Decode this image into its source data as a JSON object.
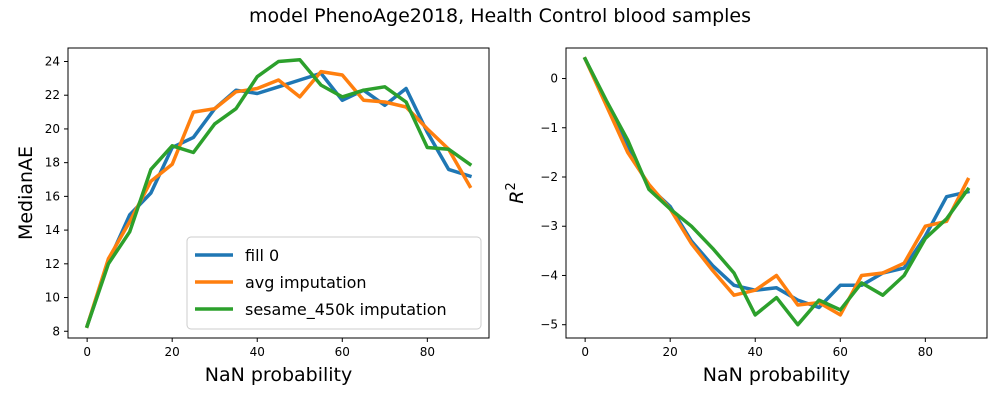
{
  "figure_title": "model PhenoAge2018, Health Control blood samples",
  "chart_data": [
    {
      "type": "line",
      "xlabel": "NaN probability",
      "ylabel": "MedianAE",
      "xlim": [
        -4.5,
        94.5
      ],
      "ylim": [
        7.6,
        24.8
      ],
      "xticks": [
        0,
        20,
        40,
        60,
        80
      ],
      "yticks": [
        8,
        10,
        12,
        14,
        16,
        18,
        20,
        22,
        24
      ],
      "grid": false,
      "legend": "lower-right",
      "x": [
        0,
        5,
        10,
        15,
        20,
        25,
        30,
        35,
        40,
        45,
        50,
        55,
        60,
        65,
        70,
        75,
        80,
        85,
        90
      ],
      "series": [
        {
          "name": "fill 0",
          "color": "#1f77b4",
          "values": [
            8.3,
            12.1,
            14.9,
            16.2,
            18.9,
            19.5,
            21.2,
            22.3,
            22.1,
            22.5,
            22.9,
            23.3,
            21.7,
            22.3,
            21.4,
            22.4,
            19.8,
            17.6,
            17.2
          ]
        },
        {
          "name": "avg imputation",
          "color": "#ff7f0e",
          "values": [
            8.3,
            12.3,
            14.5,
            16.9,
            17.9,
            21.0,
            21.2,
            22.2,
            22.4,
            22.9,
            21.9,
            23.4,
            23.2,
            21.7,
            21.6,
            21.3,
            20.0,
            18.8,
            16.6
          ]
        },
        {
          "name": "sesame_450k imputation",
          "color": "#2ca02c",
          "values": [
            8.3,
            12.0,
            13.9,
            17.6,
            19.0,
            18.6,
            20.3,
            21.2,
            23.1,
            24.0,
            24.1,
            22.6,
            21.9,
            22.3,
            22.5,
            21.6,
            18.9,
            18.8,
            17.9
          ]
        }
      ]
    },
    {
      "type": "line",
      "xlabel": "NaN probability",
      "ylabel": "R²",
      "ylabel_base": "R",
      "ylabel_sup": "2",
      "xlim": [
        -4.5,
        94.5
      ],
      "ylim": [
        -5.27,
        0.62
      ],
      "xticks": [
        0,
        20,
        40,
        60,
        80
      ],
      "yticks": [
        0,
        -1,
        -2,
        -3,
        -4,
        -5
      ],
      "grid": false,
      "x": [
        0,
        5,
        10,
        15,
        20,
        25,
        30,
        35,
        40,
        45,
        50,
        55,
        60,
        65,
        70,
        75,
        80,
        85,
        90
      ],
      "series": [
        {
          "name": "fill 0",
          "color": "#1f77b4",
          "values": [
            0.4,
            -0.5,
            -1.4,
            -2.2,
            -2.6,
            -3.3,
            -3.8,
            -4.2,
            -4.3,
            -4.25,
            -4.5,
            -4.65,
            -4.2,
            -4.2,
            -3.95,
            -3.85,
            -3.2,
            -2.4,
            -2.3
          ]
        },
        {
          "name": "avg imputation",
          "color": "#ff7f0e",
          "values": [
            0.4,
            -0.55,
            -1.5,
            -2.15,
            -2.65,
            -3.35,
            -3.9,
            -4.4,
            -4.3,
            -4.0,
            -4.6,
            -4.55,
            -4.8,
            -4.0,
            -3.95,
            -3.75,
            -3.0,
            -2.9,
            -2.05
          ]
        },
        {
          "name": "sesame_450k imputation",
          "color": "#2ca02c",
          "values": [
            0.4,
            -0.45,
            -1.25,
            -2.25,
            -2.65,
            -3.0,
            -3.45,
            -3.95,
            -4.8,
            -4.45,
            -5.0,
            -4.5,
            -4.7,
            -4.15,
            -4.4,
            -4.0,
            -3.25,
            -2.85,
            -2.25
          ]
        }
      ]
    }
  ]
}
